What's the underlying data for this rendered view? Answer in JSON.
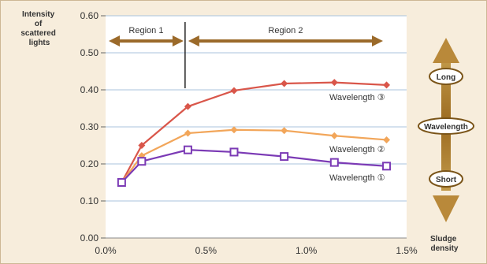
{
  "chart_data": {
    "type": "line",
    "ylabel": "Intensity of scattered lights",
    "xlabel": "Sludge density",
    "y_ticks": [
      "0.00",
      "0.10",
      "0.20",
      "0.30",
      "0.40",
      "0.50",
      "0.60"
    ],
    "x_ticks": [
      "0.0%",
      "0.5%",
      "1.0%",
      "1.5%"
    ],
    "xlim": [
      0,
      1.5
    ],
    "ylim": [
      0,
      0.6
    ],
    "regions": [
      {
        "label": "Region 1",
        "from": 0.0,
        "to": 0.4
      },
      {
        "label": "Region 2",
        "from": 0.4,
        "to": 1.5
      }
    ],
    "series": [
      {
        "name": "Wavelength ③",
        "color": "#d9564a",
        "marker": "diamond",
        "x": [
          0.08,
          0.18,
          0.41,
          0.64,
          0.89,
          1.14,
          1.4
        ],
        "y": [
          0.15,
          0.25,
          0.355,
          0.398,
          0.417,
          0.42,
          0.413
        ]
      },
      {
        "name": "Wavelength ②",
        "color": "#f2a65a",
        "marker": "diamond",
        "x": [
          0.08,
          0.18,
          0.41,
          0.64,
          0.89,
          1.14,
          1.4
        ],
        "y": [
          0.15,
          0.222,
          0.283,
          0.292,
          0.29,
          0.276,
          0.265
        ]
      },
      {
        "name": "Wavelength ①",
        "color": "#7b3ab5",
        "marker": "square",
        "x": [
          0.08,
          0.18,
          0.41,
          0.64,
          0.89,
          1.14,
          1.4
        ],
        "y": [
          0.15,
          0.207,
          0.238,
          0.232,
          0.22,
          0.204,
          0.194
        ]
      }
    ],
    "grid": true
  },
  "wavelength_scale": {
    "long_label": "Long",
    "middle_label": "Wavelength",
    "short_label": "Short"
  },
  "colors": {
    "background": "#f7eddc",
    "plot_background": "#ffffff",
    "grid": "#a9c3dd",
    "region_arrow": "#9b6a2a",
    "scale_arrow": "#b38532"
  }
}
